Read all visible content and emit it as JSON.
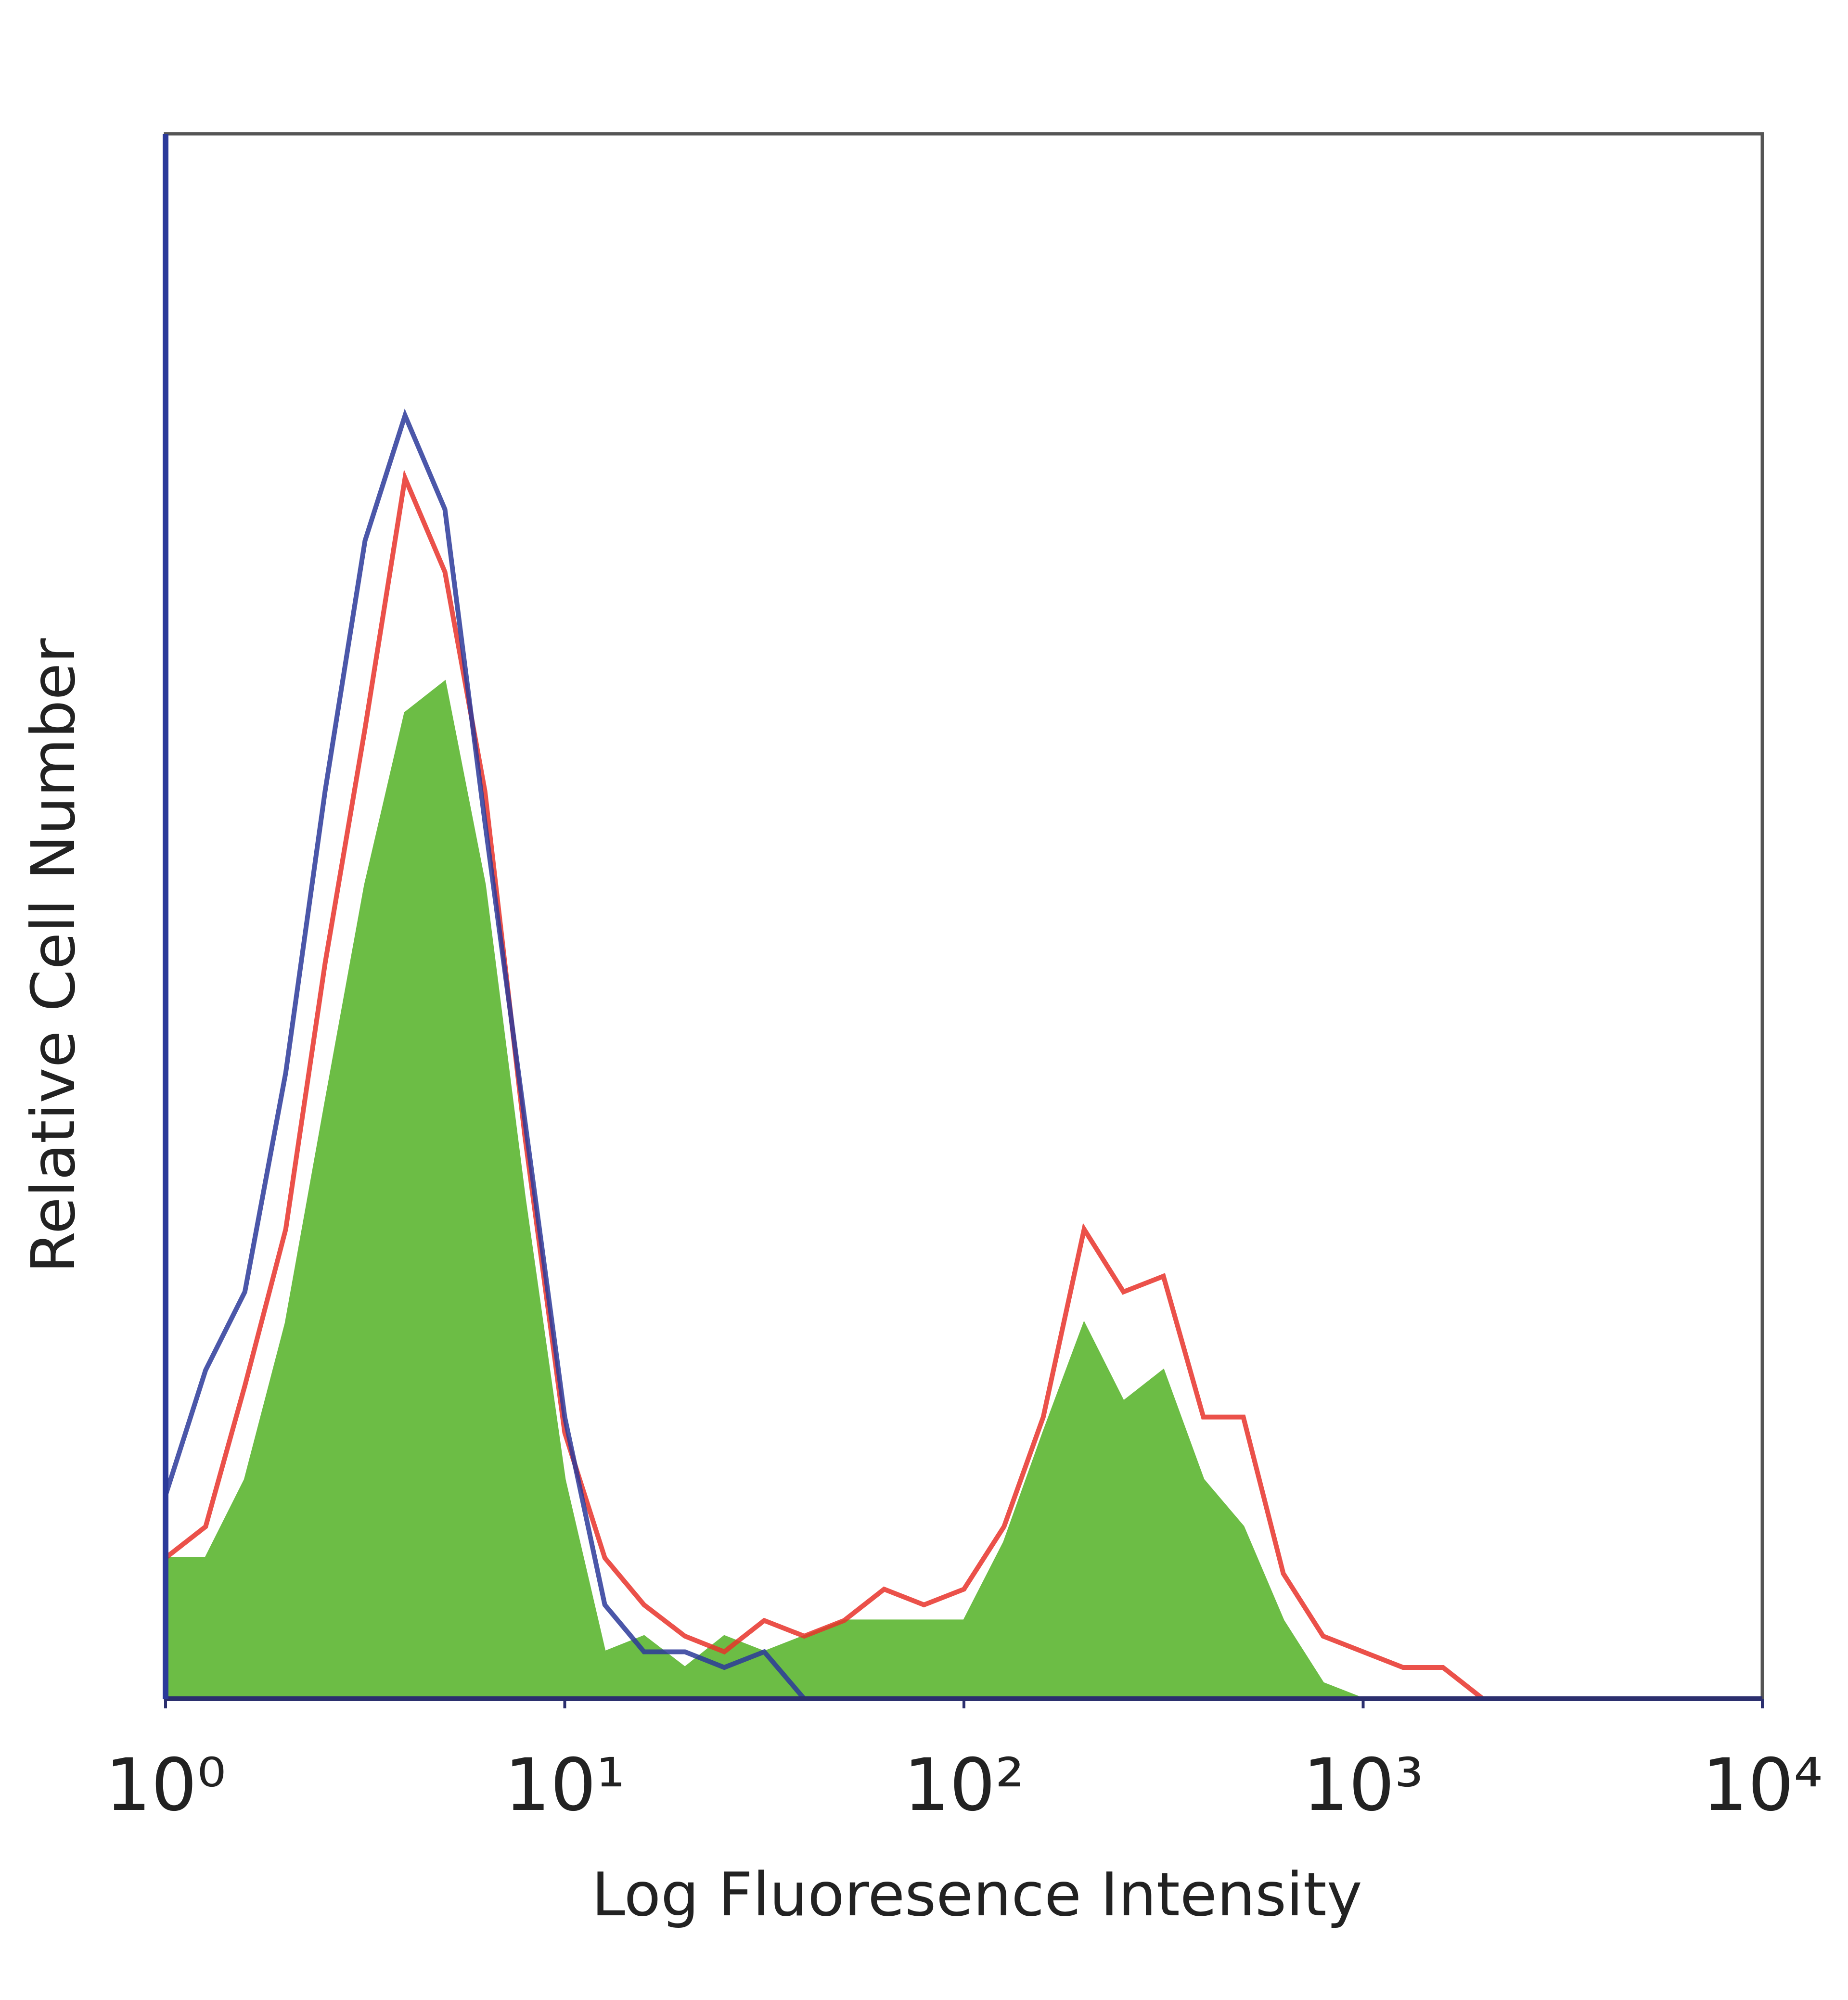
{
  "chart_data": {
    "type": "line",
    "xlabel": "Log Fluoresence Intensity",
    "ylabel": "Relative Cell Number",
    "xscale": "log",
    "xlim": [
      1,
      10000
    ],
    "xticks": [
      {
        "value": 1,
        "label": "10⁰"
      },
      {
        "value": 10,
        "label": "10¹"
      },
      {
        "value": 100,
        "label": "10²"
      },
      {
        "value": 1000,
        "label": "10³"
      },
      {
        "value": 10000,
        "label": "10⁴"
      }
    ],
    "ylim": [
      0,
      100
    ],
    "x": [
      1,
      1.26,
      1.58,
      2,
      2.51,
      3.16,
      3.98,
      5.01,
      6.31,
      7.94,
      10,
      12.6,
      15.8,
      20,
      25.1,
      31.6,
      39.8,
      50.1,
      63.1,
      79.4,
      100,
      126,
      158,
      200,
      251,
      316,
      398,
      501,
      631,
      794,
      1000,
      1259,
      1585,
      1995
    ],
    "series": [
      {
        "color": "#6cbd45",
        "fill": true,
        "values": [
          9,
          9,
          14,
          24,
          38,
          52,
          63,
          65,
          52,
          32,
          14,
          3,
          4,
          2,
          4,
          3,
          4,
          5,
          5,
          5,
          5,
          10,
          17,
          24,
          19,
          21,
          14,
          11,
          5,
          1,
          0,
          0,
          0,
          0
        ]
      },
      {
        "color": "#e8322a",
        "fill": false,
        "values": [
          9,
          11,
          20,
          30,
          47,
          62,
          78,
          72,
          58,
          36,
          17,
          9,
          6,
          4,
          3,
          5,
          4,
          5,
          7,
          6,
          7,
          11,
          18,
          30,
          26,
          27,
          18,
          18,
          8,
          4,
          3,
          2,
          2,
          0
        ]
      },
      {
        "color": "#2b3a9a",
        "fill": false,
        "values": [
          13,
          21,
          26,
          40,
          58,
          74,
          82,
          76,
          56,
          37,
          18,
          6,
          3,
          3,
          2,
          3,
          0,
          0,
          0,
          0,
          0,
          0,
          0,
          0,
          0,
          0,
          0,
          0,
          0,
          0,
          0,
          0,
          0,
          0
        ]
      }
    ]
  }
}
